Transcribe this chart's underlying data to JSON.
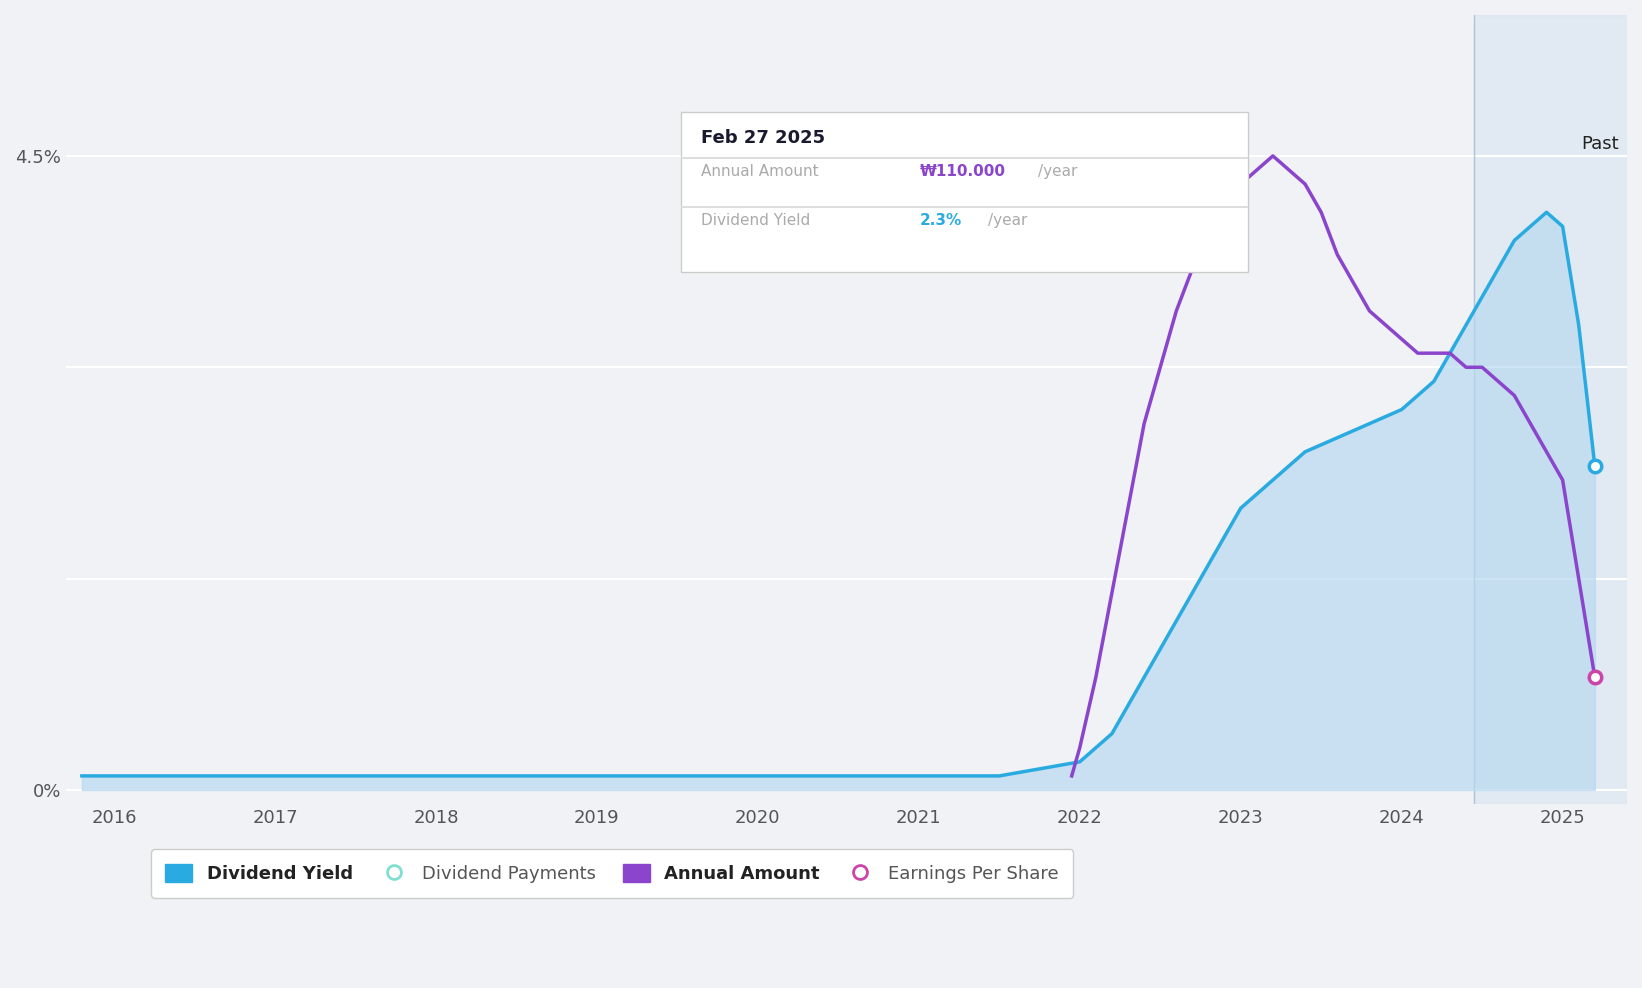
{
  "background_color": "#f0f2f5",
  "plot_bg_color": "#f0f2f5",
  "xlim": [
    2015.7,
    2025.4
  ],
  "ylim": [
    -0.001,
    0.055
  ],
  "xticks": [
    2016,
    2017,
    2018,
    2019,
    2020,
    2021,
    2022,
    2023,
    2024,
    2025
  ],
  "past_line_x": 2024.45,
  "past_label": "Past",
  "tooltip": {
    "date": "Feb 27 2025",
    "annual_amount_label": "Annual Amount",
    "annual_amount_value": "₩110.000",
    "annual_amount_unit": "/year",
    "dividend_yield_label": "Dividend Yield",
    "dividend_yield_value": "2.3%",
    "dividend_yield_unit": "/year"
  },
  "dividend_yield_color": "#29ABE2",
  "dividend_yield_fill_color": "#B8D9F0",
  "annual_amount_color": "#8B44CC",
  "earnings_per_share_color": "#CC44AA",
  "dividend_payments_color": "#80E0D0",
  "legend_items": [
    {
      "label": "Dividend Yield",
      "color": "#29ABE2",
      "filled": true
    },
    {
      "label": "Dividend Payments",
      "color": "#80E0D0",
      "filled": false
    },
    {
      "label": "Annual Amount",
      "color": "#8B44CC",
      "filled": true
    },
    {
      "label": "Earnings Per Share",
      "color": "#CC44AA",
      "filled": false
    }
  ],
  "div_yield_x": [
    2015.8,
    2016.0,
    2017.0,
    2018.0,
    2019.0,
    2020.0,
    2021.0,
    2021.5,
    2022.0,
    2022.2,
    2022.4,
    2022.6,
    2022.8,
    2023.0,
    2023.2,
    2023.4,
    2023.6,
    2023.8,
    2024.0,
    2024.1,
    2024.2,
    2024.3,
    2024.4,
    2024.45,
    2024.5,
    2024.6,
    2024.7,
    2024.8,
    2024.9,
    2025.0,
    2025.1,
    2025.2
  ],
  "div_yield_y": [
    0.001,
    0.001,
    0.001,
    0.001,
    0.001,
    0.001,
    0.001,
    0.001,
    0.002,
    0.004,
    0.008,
    0.012,
    0.016,
    0.02,
    0.022,
    0.024,
    0.025,
    0.026,
    0.027,
    0.028,
    0.029,
    0.031,
    0.033,
    0.034,
    0.035,
    0.037,
    0.039,
    0.04,
    0.041,
    0.04,
    0.033,
    0.023
  ],
  "annual_amount_x": [
    2021.95,
    2022.0,
    2022.1,
    2022.2,
    2022.3,
    2022.4,
    2022.5,
    2022.6,
    2022.7,
    2022.8,
    2022.9,
    2023.0,
    2023.1,
    2023.2,
    2023.3,
    2023.4,
    2023.45,
    2023.5,
    2023.6,
    2023.7,
    2023.8,
    2023.9,
    2024.0,
    2024.1,
    2024.2,
    2024.3,
    2024.4,
    2024.45,
    2024.5,
    2024.6,
    2024.7,
    2024.8,
    2024.9,
    2025.0,
    2025.1,
    2025.2
  ],
  "annual_amount_y": [
    0.001,
    0.003,
    0.008,
    0.014,
    0.02,
    0.026,
    0.03,
    0.034,
    0.037,
    0.039,
    0.041,
    0.043,
    0.044,
    0.045,
    0.044,
    0.043,
    0.042,
    0.041,
    0.038,
    0.036,
    0.034,
    0.033,
    0.032,
    0.031,
    0.031,
    0.031,
    0.03,
    0.03,
    0.03,
    0.029,
    0.028,
    0.026,
    0.024,
    0.022,
    0.015,
    0.008
  ]
}
